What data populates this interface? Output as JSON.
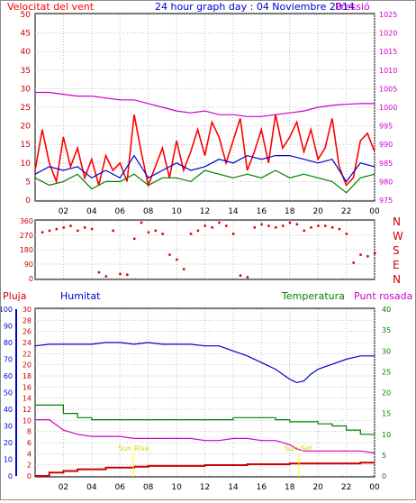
{
  "header": {
    "wind_label": "Velocitat del vent",
    "title": "24 hour graph day : 04 Noviembre 2014",
    "pressure_label": "Pressió"
  },
  "lower_header": {
    "rain_label": "Pluja",
    "humidity_label": "Humitat",
    "temperature_label": "Temperatura",
    "dewpoint_label": "Punt rosada"
  },
  "annotations": {
    "sunrise": "Sun Rise",
    "sunset": "Sun Set"
  },
  "colors": {
    "wind_speed": "#ff0000",
    "wind_avg": "#0000cc",
    "wind_gust": "#008000",
    "pressure": "#cc00cc",
    "humidity": "#0000cc",
    "temperature": "#008000",
    "dewpoint": "#cc00cc",
    "rain": "#cc0000",
    "grid": "#c0c0c0",
    "annotation": "#ffff00"
  },
  "chart_data": [
    {
      "type": "line",
      "title": "24 hour graph day : 04 Noviembre 2014",
      "x_range": [
        0,
        24
      ],
      "x_ticks": [
        "02",
        "04",
        "06",
        "08",
        "10",
        "12",
        "14",
        "16",
        "18",
        "20",
        "22",
        "00"
      ],
      "y_left": {
        "label": "Velocitat del vent",
        "range": [
          0,
          50
        ],
        "ticks": [
          0,
          5,
          10,
          15,
          20,
          25,
          30,
          35,
          40,
          45,
          50
        ]
      },
      "y_right": {
        "label": "Pressió",
        "range": [
          975,
          1025
        ],
        "ticks": [
          975,
          980,
          985,
          990,
          995,
          1000,
          1005,
          1010,
          1015,
          1020,
          1025
        ]
      },
      "grid": true,
      "series": [
        {
          "name": "pressure",
          "axis": "right",
          "x": [
            0,
            1,
            2,
            3,
            4,
            5,
            6,
            7,
            8,
            9,
            10,
            11,
            12,
            13,
            14,
            15,
            16,
            17,
            18,
            19,
            20,
            21,
            22,
            23,
            24
          ],
          "values": [
            1004,
            1004,
            1003.5,
            1003,
            1003,
            1002.5,
            1002,
            1002,
            1001,
            1000,
            999,
            998.5,
            999,
            998,
            998,
            997.5,
            997.5,
            998,
            998.5,
            999,
            1000,
            1000.5,
            1000.8,
            1001,
            1001
          ]
        },
        {
          "name": "wind_speed",
          "axis": "left",
          "x": [
            0,
            0.5,
            1,
            1.5,
            2,
            2.5,
            3,
            3.5,
            4,
            4.5,
            5,
            5.5,
            6,
            6.5,
            7,
            7.5,
            8,
            8.5,
            9,
            9.5,
            10,
            10.5,
            11,
            11.5,
            12,
            12.5,
            13,
            13.5,
            14,
            14.5,
            15,
            15.5,
            16,
            16.5,
            17,
            17.5,
            18,
            18.5,
            19,
            19.5,
            20,
            20.5,
            21,
            21.5,
            22,
            22.5,
            23,
            23.5,
            24
          ],
          "values": [
            8,
            19,
            10,
            5,
            17,
            9,
            14,
            6,
            11,
            4,
            12,
            8,
            10,
            5,
            23,
            13,
            4,
            9,
            14,
            6,
            16,
            8,
            13,
            19,
            12,
            21,
            17,
            10,
            16,
            22,
            8,
            13,
            19,
            10,
            23,
            14,
            17,
            21,
            13,
            19,
            11,
            14,
            22,
            9,
            4,
            6,
            16,
            18,
            13
          ]
        },
        {
          "name": "wind_avg",
          "axis": "left",
          "x": [
            0,
            1,
            2,
            3,
            4,
            5,
            6,
            7,
            8,
            9,
            10,
            11,
            12,
            13,
            14,
            15,
            16,
            17,
            18,
            19,
            20,
            21,
            22,
            23,
            24
          ],
          "values": [
            7,
            9,
            8,
            9,
            6,
            8,
            6,
            12,
            6,
            8,
            10,
            8,
            9,
            11,
            10,
            12,
            11,
            12,
            12,
            11,
            10,
            11,
            5,
            10,
            9
          ]
        },
        {
          "name": "wind_gust",
          "axis": "left",
          "x": [
            0,
            1,
            2,
            3,
            4,
            5,
            6,
            7,
            8,
            9,
            10,
            11,
            12,
            13,
            14,
            15,
            16,
            17,
            18,
            19,
            20,
            21,
            22,
            23,
            24
          ],
          "values": [
            6,
            4,
            5,
            7,
            3,
            5,
            5,
            7,
            4,
            6,
            6,
            5,
            8,
            7,
            6,
            7,
            6,
            8,
            6,
            7,
            6,
            5,
            2,
            6,
            7
          ]
        }
      ]
    },
    {
      "type": "scatter",
      "title": "",
      "x_range": [
        0,
        24
      ],
      "y_ticks": [
        "360",
        "270",
        "180",
        "90",
        "0"
      ],
      "y_right_labels": [
        "N",
        "W",
        "S",
        "E",
        "N"
      ],
      "y_range": [
        0,
        360
      ],
      "series": [
        {
          "name": "wind_direction",
          "x": [
            0.5,
            1,
            1.5,
            2,
            2.5,
            3,
            3.5,
            4,
            4.5,
            5,
            5.5,
            6,
            6.5,
            7,
            7.5,
            8,
            8.5,
            9,
            9.5,
            10,
            10.5,
            11,
            11.5,
            12,
            12.5,
            13,
            13.5,
            14,
            14.5,
            15,
            15.5,
            16,
            16.5,
            17,
            17.5,
            18,
            18.5,
            19,
            19.5,
            20,
            20.5,
            21,
            21.5,
            22,
            22.5,
            23,
            23.5,
            24
          ],
          "values": [
            290,
            300,
            310,
            320,
            330,
            300,
            320,
            310,
            40,
            15,
            300,
            30,
            25,
            250,
            350,
            290,
            300,
            280,
            150,
            120,
            60,
            280,
            300,
            330,
            320,
            350,
            330,
            280,
            20,
            10,
            320,
            340,
            330,
            320,
            330,
            350,
            340,
            300,
            320,
            330,
            330,
            320,
            310,
            280,
            100,
            150,
            140,
            160
          ]
        }
      ]
    },
    {
      "type": "line",
      "title": "",
      "x_range": [
        0,
        24
      ],
      "y_left_rain": {
        "label": "Pluja",
        "range": [
          0,
          100
        ],
        "ticks": [
          0,
          10,
          20,
          30,
          40,
          50,
          60,
          70,
          80,
          90,
          100
        ]
      },
      "y_left_humidity": {
        "label": "Humitat",
        "range": [
          0,
          30
        ],
        "ticks": [
          0,
          2,
          4,
          6,
          8,
          10,
          12,
          14,
          16,
          18,
          20,
          22,
          24,
          26,
          28,
          30
        ]
      },
      "y_right": {
        "label": "Temperatura",
        "range": [
          0,
          40
        ],
        "ticks": [
          0,
          5,
          10,
          15,
          20,
          25,
          30,
          35,
          40
        ]
      },
      "grid": true,
      "series": [
        {
          "name": "humidity",
          "axis": "left_rain",
          "x": [
            0,
            1,
            2,
            3,
            4,
            5,
            6,
            7,
            8,
            9,
            10,
            11,
            12,
            13,
            14,
            15,
            16,
            17,
            18,
            18.5,
            19,
            19.5,
            20,
            21,
            22,
            23,
            24
          ],
          "values": [
            78,
            79,
            79,
            79,
            79,
            80,
            80,
            79,
            80,
            79,
            79,
            79,
            78,
            78,
            75,
            72,
            68,
            64,
            58,
            56,
            57,
            61,
            64,
            67,
            70,
            72,
            72
          ]
        },
        {
          "name": "temperature",
          "axis": "right",
          "x": [
            0,
            1,
            2,
            3,
            4,
            5,
            6,
            7,
            8,
            9,
            10,
            11,
            12,
            13,
            14,
            15,
            16,
            17,
            18,
            19,
            20,
            21,
            22,
            23,
            24
          ],
          "values": [
            17,
            17,
            15,
            14,
            13.5,
            13.5,
            13.5,
            13.5,
            13.5,
            13.5,
            13.5,
            13.5,
            13.5,
            13.5,
            14,
            14,
            14,
            13.5,
            13,
            13,
            12.5,
            12,
            11,
            10,
            10
          ]
        },
        {
          "name": "dewpoint",
          "axis": "right",
          "x": [
            0,
            1,
            2,
            3,
            4,
            5,
            6,
            7,
            8,
            9,
            10,
            11,
            12,
            13,
            14,
            15,
            16,
            17,
            18,
            18.5,
            19,
            19.5,
            20,
            21,
            22,
            23,
            24
          ],
          "values": [
            13.5,
            13.5,
            11,
            10,
            9.5,
            9.5,
            9.5,
            9,
            9,
            9,
            9,
            9,
            8.5,
            8.5,
            9,
            9,
            8.5,
            8.5,
            7.5,
            6.5,
            6,
            6,
            6,
            6,
            6,
            6,
            5.5
          ]
        },
        {
          "name": "rain",
          "axis": "left_rain",
          "x": [
            0,
            0.5,
            1,
            2,
            3,
            4,
            5,
            6,
            7,
            8,
            9,
            10,
            11,
            12,
            13,
            14,
            15,
            16,
            17,
            18,
            19,
            20,
            21,
            22,
            23,
            24
          ],
          "values": [
            0,
            0,
            2,
            3,
            4,
            4,
            5,
            5,
            5.5,
            6,
            6,
            6,
            6,
            6.5,
            6.5,
            6.5,
            7,
            7,
            7,
            7.5,
            7.5,
            7.5,
            7.5,
            7.5,
            8,
            8
          ]
        }
      ]
    }
  ]
}
